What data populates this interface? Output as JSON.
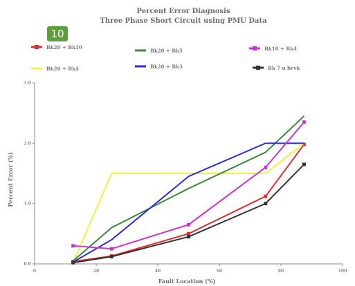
{
  "badge": "10",
  "chart_data": {
    "type": "line",
    "title": "Percent Error Diagnosis",
    "subtitle": "Three Phase Short Circuit using PMU Data",
    "xlabel": "Fault Location (%)",
    "ylabel": "Percent Error (%)",
    "xlim": [
      0,
      100
    ],
    "ylim": [
      0,
      3
    ],
    "xticks": [
      "0",
      "20",
      "40",
      "60",
      "80",
      "100"
    ],
    "yticks": [
      "0.0",
      "1.0",
      "2.0",
      "3.0"
    ],
    "x": [
      12.5,
      25,
      50,
      75,
      87.5
    ],
    "series": [
      {
        "name": "Bk20 + Bk10",
        "color": "#e03030",
        "values": [
          0.04,
          0.13,
          0.5,
          1.12,
          1.98
        ],
        "marker": true
      },
      {
        "name": "Bk20 + Bk4",
        "color": "#f2f23c",
        "values": [
          0.02,
          1.5,
          1.5,
          1.5,
          2.0
        ],
        "marker": false
      },
      {
        "name": "Bk20 + Bk5",
        "color": "#3a8a3a",
        "values": [
          0.05,
          0.6,
          1.25,
          1.85,
          2.45
        ],
        "marker": false
      },
      {
        "name": "Bk20 + Bk3",
        "color": "#2a2ae0",
        "values": [
          0.03,
          0.4,
          1.45,
          2.0,
          2.0
        ],
        "marker": false
      },
      {
        "name": "Bk10 + Bk4",
        "color": "#d030d0",
        "values": [
          0.3,
          0.25,
          0.65,
          1.6,
          2.35
        ],
        "marker": true
      },
      {
        "name": "Bk 7 u bevk",
        "color": "#333333",
        "values": [
          0.02,
          0.12,
          0.45,
          1.0,
          1.65
        ],
        "marker": true
      }
    ]
  }
}
